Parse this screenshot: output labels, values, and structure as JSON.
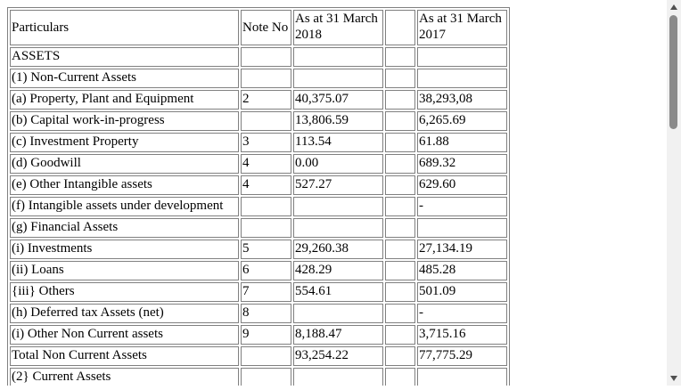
{
  "header": {
    "particulars": "Particulars",
    "note_no": "Note No",
    "col_2018": "As at 31 March 2018",
    "col_blank": "",
    "col_2017": "As at 31 March 2017"
  },
  "rows": [
    {
      "particulars": "ASSETS",
      "note": "",
      "v2018": "",
      "v2017": ""
    },
    {
      "particulars": "(1) Non-Current Assets",
      "note": "",
      "v2018": "",
      "v2017": ""
    },
    {
      "particulars": "(a) Property, Plant and Equipment",
      "note": "2",
      "v2018": "40,375.07",
      "v2017": "38,293,08"
    },
    {
      "particulars": "(b) Capital work-in-progress",
      "note": "",
      "v2018": "13,806.59",
      "v2017": "6,265.69"
    },
    {
      "particulars": "(c) Investment Property",
      "note": "3",
      "v2018": "113.54",
      "v2017": "61.88"
    },
    {
      "particulars": "(d) Goodwill",
      "note": "4",
      "v2018": "0.00",
      "v2017": "689.32"
    },
    {
      "particulars": "(e) Other Intangible assets",
      "note": "4",
      "v2018": "527.27",
      "v2017": "629.60"
    },
    {
      "particulars": "(f) Intangible assets under development",
      "note": "",
      "v2018": "",
      "v2017": "-"
    },
    {
      "particulars": "(g) Financial Assets",
      "note": "",
      "v2018": "",
      "v2017": ""
    },
    {
      "particulars": "(i) Investments",
      "note": "5",
      "v2018": "29,260.38",
      "v2017": "27,134.19"
    },
    {
      "particulars": "(ii) Loans",
      "note": "6",
      "v2018": "428.29",
      "v2017": "485.28"
    },
    {
      "particulars": "{iii} Others",
      "note": "7",
      "v2018": "554.61",
      "v2017": "501.09"
    },
    {
      "particulars": "(h) Deferred tax Assets (net)",
      "note": "8",
      "v2018": "",
      "v2017": "-"
    },
    {
      "particulars": "(i) Other Non Current assets",
      "note": "9",
      "v2018": "8,188.47",
      "v2017": "3,715.16"
    },
    {
      "particulars": "Total Non Current Assets",
      "note": "",
      "v2018": "93,254.22",
      "v2017": "77,775.29"
    },
    {
      "particulars": "(2} Current Assets",
      "note": "",
      "v2018": "",
      "v2017": ""
    }
  ],
  "scrollbar": {
    "position_fraction": 0.0,
    "visible_fraction": 0.32
  }
}
